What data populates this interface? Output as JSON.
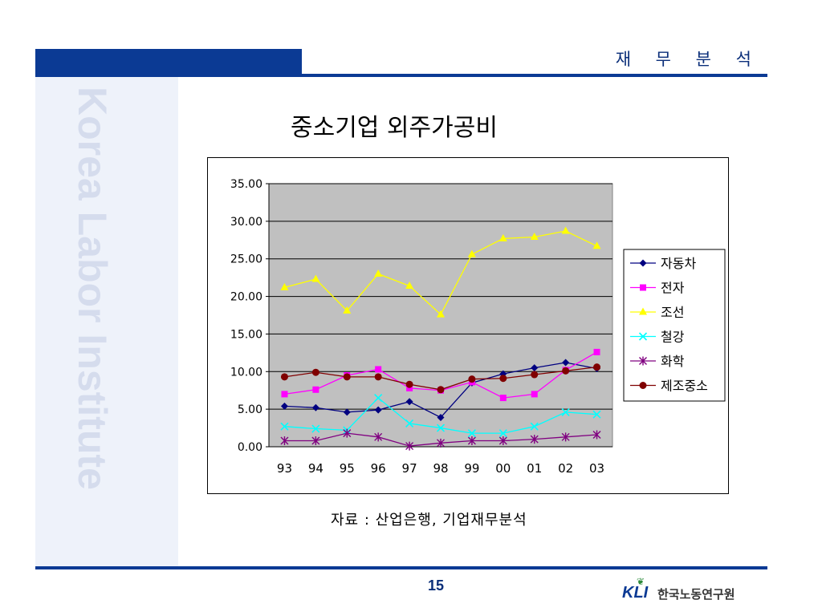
{
  "header": {
    "section_title": "재 무 분 석"
  },
  "watermark": {
    "text": "Korea Labor Institute"
  },
  "slide": {
    "title": "중소기업 외주가공비",
    "source": "자료 : 산업은행, 기업재무분석",
    "page_number": "15"
  },
  "logo": {
    "mark": "KLI",
    "name": "한국노동연구원"
  },
  "chart_data": {
    "type": "line",
    "title": "",
    "xlabel": "",
    "ylabel": "",
    "categories": [
      "93",
      "94",
      "95",
      "96",
      "97",
      "98",
      "99",
      "00",
      "01",
      "02",
      "03"
    ],
    "ylim": [
      0,
      35
    ],
    "yticks": [
      "0.00",
      "5.00",
      "10.00",
      "15.00",
      "20.00",
      "25.00",
      "30.00",
      "35.00"
    ],
    "grid": true,
    "legend_position": "right",
    "series": [
      {
        "name": "자동차",
        "color": "#000080",
        "marker": "diamond",
        "values": [
          5.4,
          5.2,
          4.6,
          4.9,
          6.0,
          3.9,
          8.5,
          9.7,
          10.5,
          11.2,
          10.4
        ]
      },
      {
        "name": "전자",
        "color": "#ff00ff",
        "marker": "square",
        "values": [
          7.0,
          7.6,
          9.5,
          10.3,
          7.8,
          7.5,
          8.6,
          6.5,
          7.0,
          10.2,
          12.6
        ]
      },
      {
        "name": "조선",
        "color": "#ffff00",
        "marker": "triangle",
        "values": [
          21.2,
          22.3,
          18.1,
          23.0,
          21.4,
          17.6,
          25.6,
          27.7,
          27.9,
          28.7,
          26.7
        ]
      },
      {
        "name": "철강",
        "color": "#00ffff",
        "marker": "x",
        "values": [
          2.7,
          2.4,
          2.2,
          6.5,
          3.1,
          2.5,
          1.8,
          1.8,
          2.7,
          4.6,
          4.3
        ]
      },
      {
        "name": "화학",
        "color": "#800080",
        "marker": "star",
        "values": [
          0.8,
          0.8,
          1.8,
          1.3,
          0.1,
          0.5,
          0.8,
          0.8,
          1.0,
          1.3,
          1.6
        ]
      },
      {
        "name": "제조중소",
        "color": "#800000",
        "marker": "circle",
        "values": [
          9.3,
          9.9,
          9.3,
          9.3,
          8.3,
          7.6,
          9.0,
          9.1,
          9.6,
          10.1,
          10.6
        ]
      }
    ]
  }
}
